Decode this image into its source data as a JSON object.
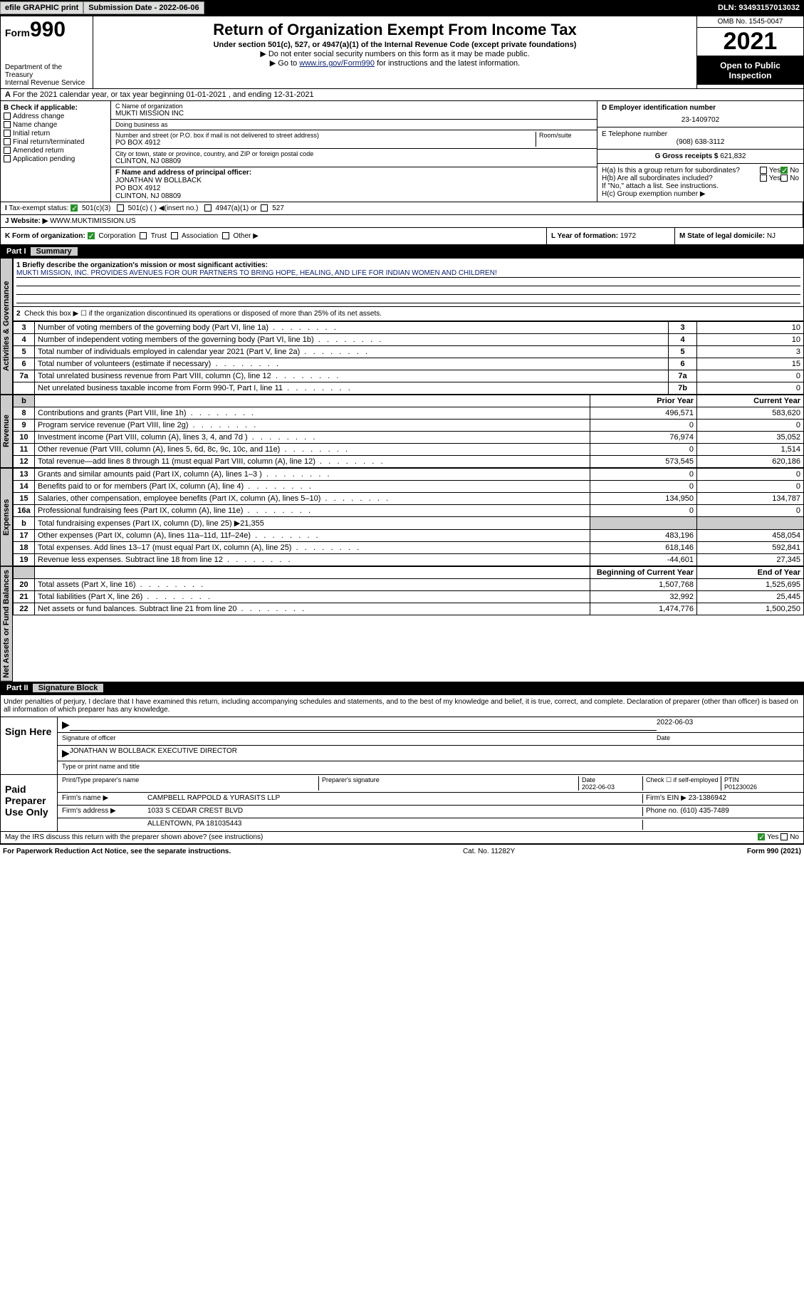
{
  "topbar": {
    "efile": "efile GRAPHIC print",
    "subdate_label": "Submission Date - 2022-06-06",
    "dln": "DLN: 93493157013032"
  },
  "header": {
    "form_prefix": "Form",
    "form_num": "990",
    "dept": "Department of the Treasury",
    "irs": "Internal Revenue Service",
    "title": "Return of Organization Exempt From Income Tax",
    "sub": "Under section 501(c), 527, or 4947(a)(1) of the Internal Revenue Code (except private foundations)",
    "note1": "▶ Do not enter social security numbers on this form as it may be made public.",
    "note2_pre": "▶ Go to ",
    "note2_link": "www.irs.gov/Form990",
    "note2_post": " for instructions and the latest information.",
    "omb": "OMB No. 1545-0047",
    "year": "2021",
    "open_public": "Open to Public Inspection"
  },
  "row_a": "For the 2021 calendar year, or tax year beginning 01-01-2021   , and ending 12-31-2021",
  "col_b": {
    "title": "B Check if applicable:",
    "items": [
      "Address change",
      "Name change",
      "Initial return",
      "Final return/terminated",
      "Amended return",
      "Application pending"
    ]
  },
  "org": {
    "c_label": "C Name of organization",
    "name": "MUKTI MISSION INC",
    "dba_label": "Doing business as",
    "dba": "",
    "addr_label": "Number and street (or P.O. box if mail is not delivered to street address)",
    "room_label": "Room/suite",
    "addr": "PO BOX 4912",
    "city_label": "City or town, state or province, country, and ZIP or foreign postal code",
    "city": "CLINTON, NJ  08809",
    "f_label": "F Name and address of principal officer:",
    "officer": "JONATHAN W BOLLBACK",
    "officer_addr1": "PO BOX 4912",
    "officer_addr2": "CLINTON, NJ  08809"
  },
  "d": {
    "label": "D Employer identification number",
    "value": "23-1409702"
  },
  "e": {
    "label": "E Telephone number",
    "value": "(908) 638-3112"
  },
  "g": {
    "label": "G Gross receipts $",
    "value": "621,832"
  },
  "h": {
    "a": "H(a)  Is this a group return for subordinates?",
    "b": "H(b)  Are all subordinates included?",
    "b_note": "If \"No,\" attach a list. See instructions.",
    "c": "H(c)  Group exemption number ▶",
    "yes": "Yes",
    "no": "No"
  },
  "i": {
    "label": "Tax-exempt status:",
    "opts": [
      "501(c)(3)",
      "501(c) (  ) ◀(insert no.)",
      "4947(a)(1) or",
      "527"
    ]
  },
  "j": {
    "label": "Website: ▶",
    "value": "WWW.MUKTIMISSION.US"
  },
  "k": {
    "label": "K Form of organization:",
    "opts": [
      "Corporation",
      "Trust",
      "Association",
      "Other ▶"
    ]
  },
  "l": {
    "label": "L Year of formation:",
    "value": "1972"
  },
  "m": {
    "label": "M State of legal domicile:",
    "value": "NJ"
  },
  "part1": {
    "tag": "Part I",
    "title": "Summary"
  },
  "mission": {
    "label": "1  Briefly describe the organization's mission or most significant activities:",
    "text": "MUKTI MISSION, INC. PROVIDES AVENUES FOR OUR PARTNERS TO BRING HOPE, HEALING, AND LIFE FOR INDIAN WOMEN AND CHILDREN!"
  },
  "line2": "Check this box ▶ ☐  if the organization discontinued its operations or disposed of more than 25% of its net assets.",
  "gov_lines": [
    {
      "n": "3",
      "t": "Number of voting members of the governing body (Part VI, line 1a)",
      "c": "3",
      "v": "10"
    },
    {
      "n": "4",
      "t": "Number of independent voting members of the governing body (Part VI, line 1b)",
      "c": "4",
      "v": "10"
    },
    {
      "n": "5",
      "t": "Total number of individuals employed in calendar year 2021 (Part V, line 2a)",
      "c": "5",
      "v": "3"
    },
    {
      "n": "6",
      "t": "Total number of volunteers (estimate if necessary)",
      "c": "6",
      "v": "15"
    },
    {
      "n": "7a",
      "t": "Total unrelated business revenue from Part VIII, column (C), line 12",
      "c": "7a",
      "v": "0"
    },
    {
      "n": "",
      "t": "Net unrelated business taxable income from Form 990-T, Part I, line 11",
      "c": "7b",
      "v": "0"
    }
  ],
  "py_hdr": "Prior Year",
  "cy_hdr": "Current Year",
  "rev_lines": [
    {
      "n": "8",
      "t": "Contributions and grants (Part VIII, line 1h)",
      "py": "496,571",
      "cy": "583,620"
    },
    {
      "n": "9",
      "t": "Program service revenue (Part VIII, line 2g)",
      "py": "0",
      "cy": "0"
    },
    {
      "n": "10",
      "t": "Investment income (Part VIII, column (A), lines 3, 4, and 7d )",
      "py": "76,974",
      "cy": "35,052"
    },
    {
      "n": "11",
      "t": "Other revenue (Part VIII, column (A), lines 5, 6d, 8c, 9c, 10c, and 11e)",
      "py": "0",
      "cy": "1,514"
    },
    {
      "n": "12",
      "t": "Total revenue—add lines 8 through 11 (must equal Part VIII, column (A), line 12)",
      "py": "573,545",
      "cy": "620,186"
    }
  ],
  "exp_lines": [
    {
      "n": "13",
      "t": "Grants and similar amounts paid (Part IX, column (A), lines 1–3 )",
      "py": "0",
      "cy": "0"
    },
    {
      "n": "14",
      "t": "Benefits paid to or for members (Part IX, column (A), line 4)",
      "py": "0",
      "cy": "0"
    },
    {
      "n": "15",
      "t": "Salaries, other compensation, employee benefits (Part IX, column (A), lines 5–10)",
      "py": "134,950",
      "cy": "134,787"
    },
    {
      "n": "16a",
      "t": "Professional fundraising fees (Part IX, column (A), line 11e)",
      "py": "0",
      "cy": "0"
    },
    {
      "n": "b",
      "t": "Total fundraising expenses (Part IX, column (D), line 25) ▶21,355",
      "py": "",
      "cy": ""
    },
    {
      "n": "17",
      "t": "Other expenses (Part IX, column (A), lines 11a–11d, 11f–24e)",
      "py": "483,196",
      "cy": "458,054"
    },
    {
      "n": "18",
      "t": "Total expenses. Add lines 13–17 (must equal Part IX, column (A), line 25)",
      "py": "618,146",
      "cy": "592,841"
    },
    {
      "n": "19",
      "t": "Revenue less expenses. Subtract line 18 from line 12",
      "py": "-44,601",
      "cy": "27,345"
    }
  ],
  "na_hdr1": "Beginning of Current Year",
  "na_hdr2": "End of Year",
  "na_lines": [
    {
      "n": "20",
      "t": "Total assets (Part X, line 16)",
      "py": "1,507,768",
      "cy": "1,525,695"
    },
    {
      "n": "21",
      "t": "Total liabilities (Part X, line 26)",
      "py": "32,992",
      "cy": "25,445"
    },
    {
      "n": "22",
      "t": "Net assets or fund balances. Subtract line 21 from line 20",
      "py": "1,474,776",
      "cy": "1,500,250"
    }
  ],
  "part2": {
    "tag": "Part II",
    "title": "Signature Block"
  },
  "sig": {
    "declaration": "Under penalties of perjury, I declare that I have examined this return, including accompanying schedules and statements, and to the best of my knowledge and belief, it is true, correct, and complete. Declaration of preparer (other than officer) is based on all information of which preparer has any knowledge.",
    "sign_here": "Sign Here",
    "sig_officer": "Signature of officer",
    "date_label": "Date",
    "date": "2022-06-03",
    "officer_name": "JONATHAN W BOLLBACK  EXECUTIVE DIRECTOR",
    "type_name": "Type or print name and title",
    "paid_prep": "Paid Preparer Use Only",
    "prep_name_label": "Print/Type preparer's name",
    "prep_sig_label": "Preparer's signature",
    "prep_date_label": "Date",
    "prep_date": "2022-06-03",
    "check_self": "Check ☐ if self-employed",
    "ptin_label": "PTIN",
    "ptin": "P01230026",
    "firm_name_label": "Firm's name    ▶",
    "firm_name": "CAMPBELL RAPPOLD & YURASITS LLP",
    "firm_ein_label": "Firm's EIN ▶",
    "firm_ein": "23-1386942",
    "firm_addr_label": "Firm's address ▶",
    "firm_addr1": "1033 S CEDAR CREST BLVD",
    "firm_addr2": "ALLENTOWN, PA  181035443",
    "phone_label": "Phone no.",
    "phone": "(610) 435-7489",
    "discuss": "May the IRS discuss this return with the preparer shown above? (see instructions)"
  },
  "footer": {
    "left": "For Paperwork Reduction Act Notice, see the separate instructions.",
    "mid": "Cat. No. 11282Y",
    "right": "Form 990 (2021)"
  },
  "tabs": {
    "gov": "Activities & Governance",
    "rev": "Revenue",
    "exp": "Expenses",
    "na": "Net Assets or Fund Balances"
  }
}
